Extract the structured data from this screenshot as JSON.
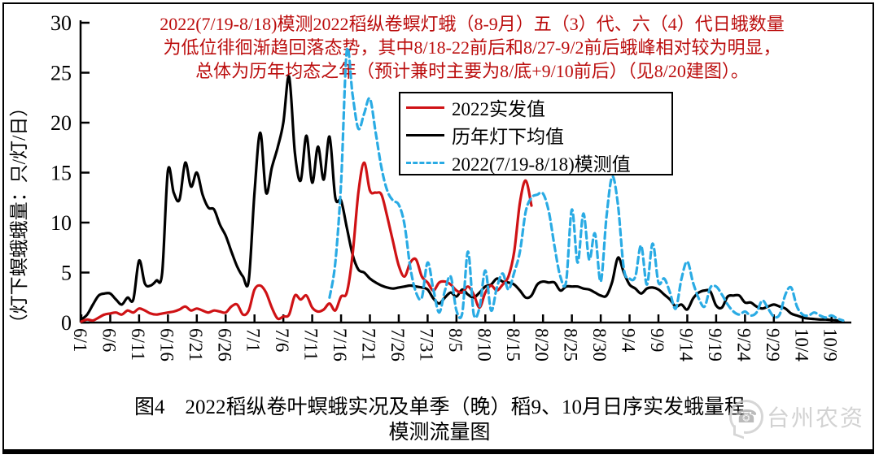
{
  "figure": {
    "annotation": {
      "color": "#bb0d0d",
      "line1": "2022(7/19-8/18)模测2022稻纵卷螟灯蛾（8-9月）五（3）代、六（4）代日蛾数量",
      "line2": "为低位徘徊渐趋回落态势，其中8/18-22前后和8/27-9/2前后蛾峰相对较为明显，",
      "line3": "总体为历年均态之年（预计兼时主要为8/底+9/10前后）（见8/20建图）。"
    },
    "legend": {
      "items": [
        {
          "label": "2022实发值",
          "color": "#cf1215",
          "dash": "solid"
        },
        {
          "label": "历年灯下均值",
          "color": "#000000",
          "dash": "solid"
        },
        {
          "label": "2022(7/19-8/18)模测值",
          "color": "#2aabe4",
          "dash": "dashed"
        }
      ]
    },
    "caption": {
      "line1": "图4　2022稻纵卷叶螟蛾实况及单季（晚）稻9、10月日序实发蛾量程",
      "line2": "模测流量图"
    },
    "watermark": {
      "icon": "phone-bubble-icon",
      "text": "台州农资",
      "color": "#c8c8c8"
    }
  },
  "chart_data": {
    "type": "line",
    "title": "2022(7/19-8/18)模测2022稻纵卷螟灯蛾（8-9月）五（3）代、六（4）代日蛾数量为低位徘徊渐趋回落态势",
    "xlabel": "",
    "ylabel": "（灯下螟蛾蛾量：只/灯/日）",
    "ylim": [
      0,
      30
    ],
    "y_ticks": [
      0,
      5,
      10,
      15,
      20,
      25,
      30
    ],
    "x_start_date": "6/1",
    "x_days_per_tick": 5,
    "x_tick_labels": [
      "6/1",
      "6/6",
      "6/11",
      "6/16",
      "6/21",
      "6/26",
      "7/1",
      "7/6",
      "7/11",
      "7/16",
      "7/21",
      "7/26",
      "7/31",
      "8/5",
      "8/10",
      "8/15",
      "8/20",
      "8/25",
      "8/30",
      "9/4",
      "9/9",
      "9/14",
      "9/19",
      "9/24",
      "9/29",
      "10/4",
      "10/9"
    ],
    "grid": false,
    "legend_position": "upper-center",
    "series": [
      {
        "name": "历年灯下均值",
        "color": "#000000",
        "style": "solid",
        "start_day": 0,
        "daily_values": [
          0.3,
          0.8,
          1.8,
          2.7,
          2.9,
          2.9,
          2.3,
          1.8,
          2.5,
          2.3,
          6.2,
          3.9,
          3.7,
          4.2,
          5.0,
          15.2,
          13.0,
          12.3,
          16.0,
          13.6,
          15.0,
          12.8,
          11.5,
          11.3,
          9.8,
          8.7,
          7.1,
          5.6,
          4.6,
          4.2,
          13.0,
          19.0,
          13.0,
          15.5,
          17.5,
          20.0,
          24.6,
          17.0,
          14.2,
          18.7,
          14.0,
          17.6,
          14.3,
          18.6,
          12.5,
          12.2,
          9.5,
          6.8,
          5.3,
          5.0,
          4.4,
          4.0,
          3.7,
          3.5,
          3.4,
          3.5,
          3.6,
          3.7,
          3.6,
          3.5,
          3.3,
          2.4,
          1.9,
          2.5,
          3.0,
          2.6,
          3.3,
          2.8,
          2.5,
          3.0,
          3.6,
          3.8,
          4.4,
          4.1,
          4.0,
          3.8,
          3.2,
          2.5,
          2.7,
          3.8,
          4.1,
          4.0,
          4.0,
          3.2,
          3.6,
          3.6,
          3.6,
          3.4,
          3.3,
          3.0,
          2.7,
          2.7,
          4.1,
          6.5,
          5.0,
          3.8,
          3.4,
          2.9,
          3.4,
          3.5,
          3.3,
          2.8,
          2.3,
          1.6,
          1.8,
          1.3,
          2.4,
          3.0,
          3.2,
          3.1,
          1.7,
          1.5,
          2.6,
          2.7,
          2.7,
          2.0,
          2.0,
          1.6,
          1.4,
          1.6,
          1.8,
          1.6,
          1.4,
          0.9,
          0.7,
          0.5,
          0.4,
          0.35,
          0.3,
          0.3,
          0.25,
          0.2,
          0.15
        ]
      },
      {
        "name": "2022实发值",
        "color": "#cf1215",
        "style": "solid",
        "start_day": 0,
        "daily_values": [
          0.1,
          0.3,
          0.2,
          0.5,
          0.8,
          0.9,
          1.0,
          0.8,
          1.2,
          1.0,
          1.4,
          1.2,
          0.9,
          0.8,
          0.9,
          1.0,
          1.1,
          1.3,
          1.6,
          1.2,
          1.4,
          1.2,
          1.0,
          1.2,
          1.1,
          1.0,
          1.6,
          1.8,
          0.8,
          1.2,
          3.3,
          3.7,
          3.0,
          1.5,
          0.4,
          0.6,
          0.8,
          2.7,
          2.3,
          2.7,
          1.5,
          1.1,
          1.3,
          1.9,
          1.2,
          2.6,
          3.0,
          6.8,
          13.0,
          16.0,
          13.2,
          13.0,
          12.8,
          10.6,
          8.1,
          5.7,
          4.6,
          6.0,
          6.3,
          4.6,
          4.0,
          3.2,
          4.0,
          4.1,
          3.8,
          3.2,
          3.0,
          3.6,
          2.8,
          1.5,
          3.0,
          3.7,
          3.2,
          3.8,
          4.6,
          7.1,
          12.0,
          14.2,
          11.7
        ]
      },
      {
        "name": "2022(7/19-8/18)模测值",
        "color": "#2aabe4",
        "style": "dashed",
        "start_day": 43,
        "daily_values": [
          2.5,
          6.0,
          14.0,
          27.2,
          22.8,
          19.4,
          20.9,
          22.4,
          19.0,
          15.5,
          13.2,
          12.2,
          11.8,
          9.8,
          5.5,
          3.0,
          2.5,
          6.0,
          3.3,
          1.0,
          3.2,
          4.6,
          1.2,
          0.9,
          7.1,
          0.8,
          1.5,
          5.2,
          1.2,
          3.5,
          4.9,
          3.3,
          5.0,
          7.1,
          11.1,
          12.5,
          12.8,
          12.9,
          11.1,
          7.6,
          4.6,
          4.1,
          11.3,
          6.0,
          10.9,
          6.3,
          8.9,
          4.1,
          10.6,
          14.6,
          11.7,
          5.4,
          4.4,
          4.6,
          7.7,
          3.8,
          7.9,
          4.0,
          4.4,
          3.0,
          1.4,
          4.4,
          6.1,
          4.0,
          2.4,
          1.6,
          3.5,
          3.6,
          2.8,
          1.8,
          1.1,
          0.8,
          1.1,
          0.7,
          1.0,
          2.2,
          1.4,
          0.6,
          0.8,
          2.8,
          3.5,
          1.6,
          0.8,
          0.7,
          1.0,
          0.7,
          0.5,
          0.7,
          0.4,
          0.2
        ]
      }
    ]
  }
}
